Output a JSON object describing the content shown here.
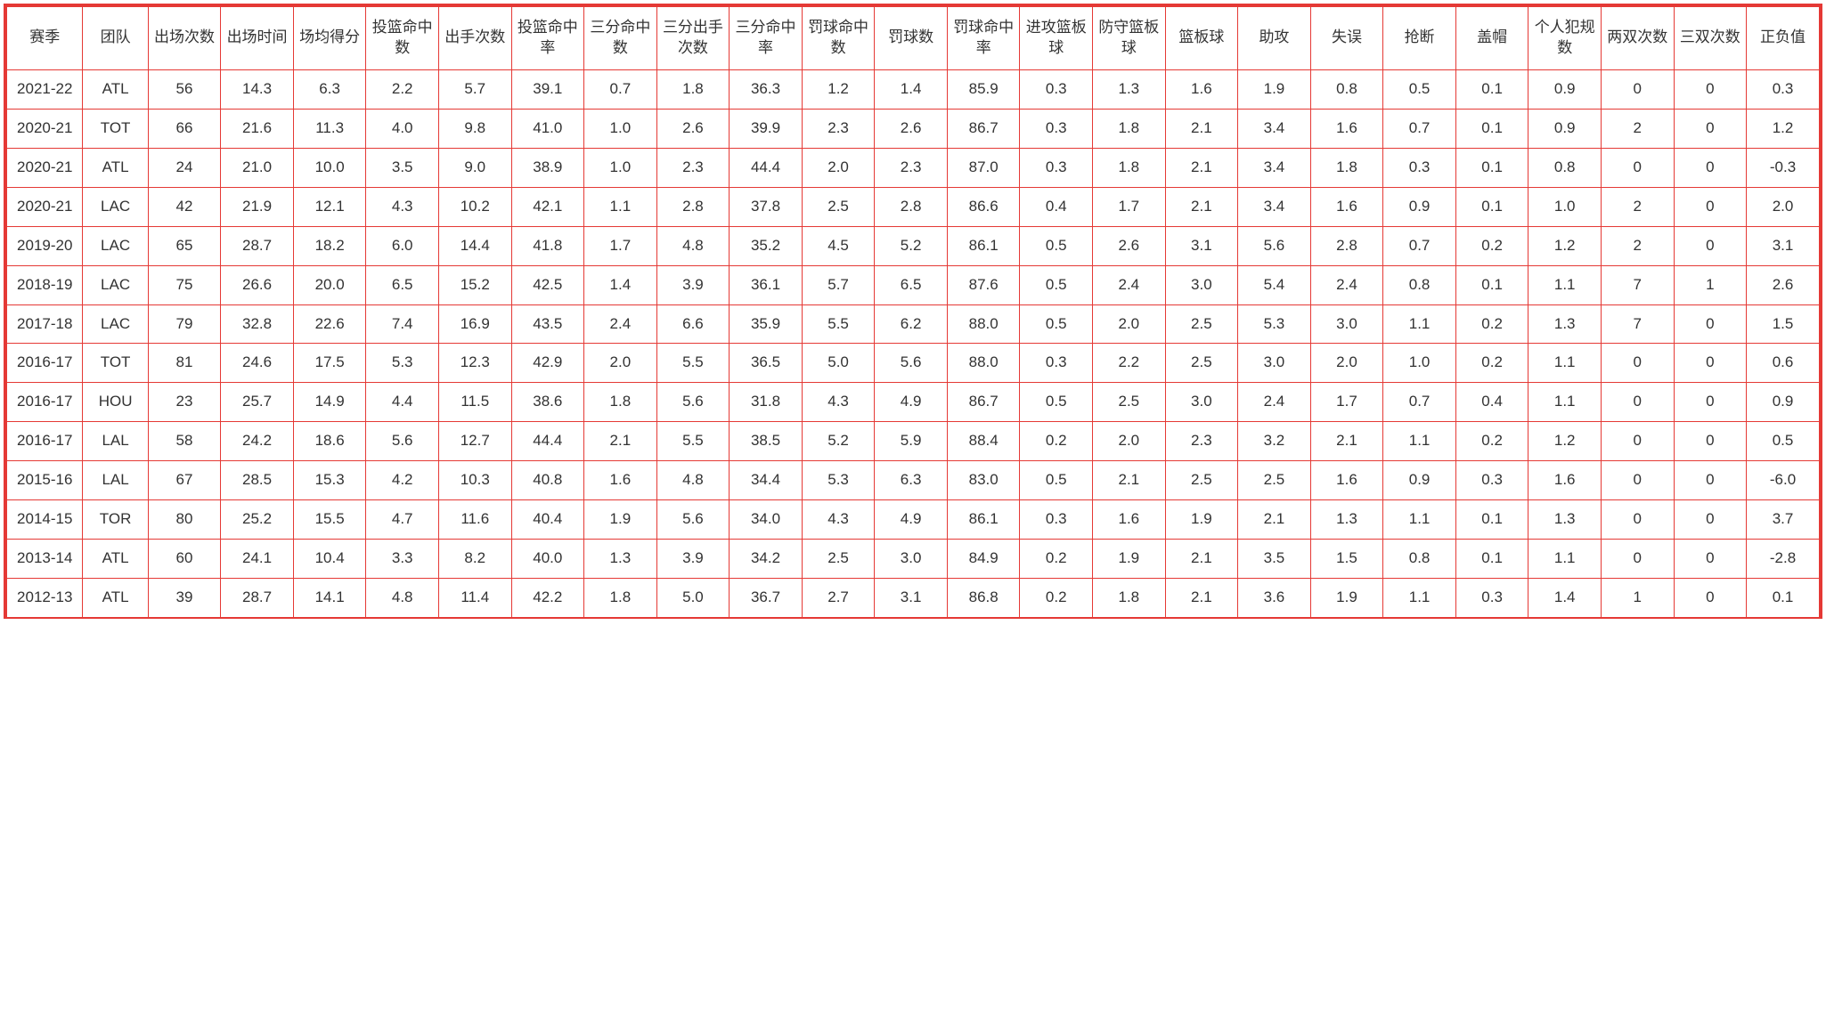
{
  "table": {
    "type": "table",
    "border_color": "#e53935",
    "background_color": "#ffffff",
    "text_color": "#333333",
    "header_fontsize": 17,
    "cell_fontsize": 17,
    "columns": [
      "赛季",
      "团队",
      "出场次数",
      "出场时间",
      "场均得分",
      "投篮命中数",
      "出手次数",
      "投篮命中率",
      "三分命中数",
      "三分出手次数",
      "三分命中率",
      "罚球命中数",
      "罚球数",
      "罚球命中率",
      "进攻篮板球",
      "防守篮板球",
      "篮板球",
      "助攻",
      "失误",
      "抢断",
      "盖帽",
      "个人犯规数",
      "两双次数",
      "三双次数",
      "正负值"
    ],
    "rows": [
      [
        "2021-22",
        "ATL",
        "56",
        "14.3",
        "6.3",
        "2.2",
        "5.7",
        "39.1",
        "0.7",
        "1.8",
        "36.3",
        "1.2",
        "1.4",
        "85.9",
        "0.3",
        "1.3",
        "1.6",
        "1.9",
        "0.8",
        "0.5",
        "0.1",
        "0.9",
        "0",
        "0",
        "0.3"
      ],
      [
        "2020-21",
        "TOT",
        "66",
        "21.6",
        "11.3",
        "4.0",
        "9.8",
        "41.0",
        "1.0",
        "2.6",
        "39.9",
        "2.3",
        "2.6",
        "86.7",
        "0.3",
        "1.8",
        "2.1",
        "3.4",
        "1.6",
        "0.7",
        "0.1",
        "0.9",
        "2",
        "0",
        "1.2"
      ],
      [
        "2020-21",
        "ATL",
        "24",
        "21.0",
        "10.0",
        "3.5",
        "9.0",
        "38.9",
        "1.0",
        "2.3",
        "44.4",
        "2.0",
        "2.3",
        "87.0",
        "0.3",
        "1.8",
        "2.1",
        "3.4",
        "1.8",
        "0.3",
        "0.1",
        "0.8",
        "0",
        "0",
        "-0.3"
      ],
      [
        "2020-21",
        "LAC",
        "42",
        "21.9",
        "12.1",
        "4.3",
        "10.2",
        "42.1",
        "1.1",
        "2.8",
        "37.8",
        "2.5",
        "2.8",
        "86.6",
        "0.4",
        "1.7",
        "2.1",
        "3.4",
        "1.6",
        "0.9",
        "0.1",
        "1.0",
        "2",
        "0",
        "2.0"
      ],
      [
        "2019-20",
        "LAC",
        "65",
        "28.7",
        "18.2",
        "6.0",
        "14.4",
        "41.8",
        "1.7",
        "4.8",
        "35.2",
        "4.5",
        "5.2",
        "86.1",
        "0.5",
        "2.6",
        "3.1",
        "5.6",
        "2.8",
        "0.7",
        "0.2",
        "1.2",
        "2",
        "0",
        "3.1"
      ],
      [
        "2018-19",
        "LAC",
        "75",
        "26.6",
        "20.0",
        "6.5",
        "15.2",
        "42.5",
        "1.4",
        "3.9",
        "36.1",
        "5.7",
        "6.5",
        "87.6",
        "0.5",
        "2.4",
        "3.0",
        "5.4",
        "2.4",
        "0.8",
        "0.1",
        "1.1",
        "7",
        "1",
        "2.6"
      ],
      [
        "2017-18",
        "LAC",
        "79",
        "32.8",
        "22.6",
        "7.4",
        "16.9",
        "43.5",
        "2.4",
        "6.6",
        "35.9",
        "5.5",
        "6.2",
        "88.0",
        "0.5",
        "2.0",
        "2.5",
        "5.3",
        "3.0",
        "1.1",
        "0.2",
        "1.3",
        "7",
        "0",
        "1.5"
      ],
      [
        "2016-17",
        "TOT",
        "81",
        "24.6",
        "17.5",
        "5.3",
        "12.3",
        "42.9",
        "2.0",
        "5.5",
        "36.5",
        "5.0",
        "5.6",
        "88.0",
        "0.3",
        "2.2",
        "2.5",
        "3.0",
        "2.0",
        "1.0",
        "0.2",
        "1.1",
        "0",
        "0",
        "0.6"
      ],
      [
        "2016-17",
        "HOU",
        "23",
        "25.7",
        "14.9",
        "4.4",
        "11.5",
        "38.6",
        "1.8",
        "5.6",
        "31.8",
        "4.3",
        "4.9",
        "86.7",
        "0.5",
        "2.5",
        "3.0",
        "2.4",
        "1.7",
        "0.7",
        "0.4",
        "1.1",
        "0",
        "0",
        "0.9"
      ],
      [
        "2016-17",
        "LAL",
        "58",
        "24.2",
        "18.6",
        "5.6",
        "12.7",
        "44.4",
        "2.1",
        "5.5",
        "38.5",
        "5.2",
        "5.9",
        "88.4",
        "0.2",
        "2.0",
        "2.3",
        "3.2",
        "2.1",
        "1.1",
        "0.2",
        "1.2",
        "0",
        "0",
        "0.5"
      ],
      [
        "2015-16",
        "LAL",
        "67",
        "28.5",
        "15.3",
        "4.2",
        "10.3",
        "40.8",
        "1.6",
        "4.8",
        "34.4",
        "5.3",
        "6.3",
        "83.0",
        "0.5",
        "2.1",
        "2.5",
        "2.5",
        "1.6",
        "0.9",
        "0.3",
        "1.6",
        "0",
        "0",
        "-6.0"
      ],
      [
        "2014-15",
        "TOR",
        "80",
        "25.2",
        "15.5",
        "4.7",
        "11.6",
        "40.4",
        "1.9",
        "5.6",
        "34.0",
        "4.3",
        "4.9",
        "86.1",
        "0.3",
        "1.6",
        "1.9",
        "2.1",
        "1.3",
        "1.1",
        "0.1",
        "1.3",
        "0",
        "0",
        "3.7"
      ],
      [
        "2013-14",
        "ATL",
        "60",
        "24.1",
        "10.4",
        "3.3",
        "8.2",
        "40.0",
        "1.3",
        "3.9",
        "34.2",
        "2.5",
        "3.0",
        "84.9",
        "0.2",
        "1.9",
        "2.1",
        "3.5",
        "1.5",
        "0.8",
        "0.1",
        "1.1",
        "0",
        "0",
        "-2.8"
      ],
      [
        "2012-13",
        "ATL",
        "39",
        "28.7",
        "14.1",
        "4.8",
        "11.4",
        "42.2",
        "1.8",
        "5.0",
        "36.7",
        "2.7",
        "3.1",
        "86.8",
        "0.2",
        "1.8",
        "2.1",
        "3.6",
        "1.9",
        "1.1",
        "0.3",
        "1.4",
        "1",
        "0",
        "0.1"
      ]
    ]
  }
}
